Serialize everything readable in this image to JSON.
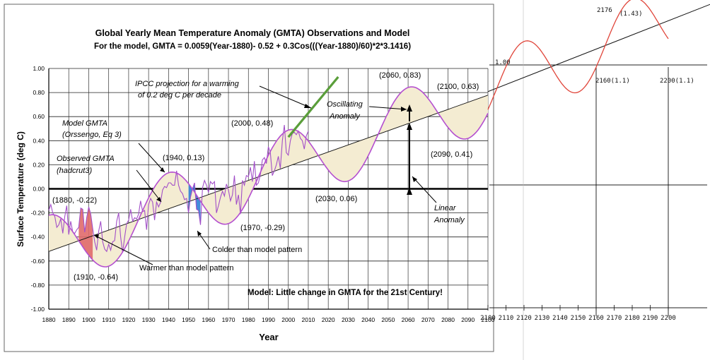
{
  "chart_data": {
    "type": "line",
    "title": "Global Yearly Mean Temperature Anomaly (GMTA) Observations and Model",
    "subtitle": "For the model, GMTA = 0.0059(Year-1880)- 0.52 + 0.3Cos(((Year-1880)/60)*2*3.1416)",
    "xlabel": "Year",
    "ylabel": "Surface Temperature (deg C)",
    "xlim": [
      1880,
      2100
    ],
    "ylim": [
      -1.0,
      1.0
    ],
    "x_ticks": [
      "1880",
      "1890",
      "1900",
      "1910",
      "1920",
      "1930",
      "1940",
      "1950",
      "1960",
      "1970",
      "1980",
      "1990",
      "2000",
      "2010",
      "2020",
      "2030",
      "2040",
      "2050",
      "2060",
      "2070",
      "2080",
      "2090",
      "2100"
    ],
    "y_ticks": [
      "1.00",
      "0.80",
      "0.60",
      "0.40",
      "0.20",
      "0.00",
      "-0.20",
      "-0.40",
      "-0.60",
      "-0.80",
      "-1.00"
    ],
    "series": [
      {
        "name": "Model GMTA (Orssengo, Eq 3)",
        "color": "#b44fd0",
        "formula": "0.0059(Year-1880)-0.52+0.3cos(2pi(Year-1880)/60)"
      },
      {
        "name": "Linear Anomaly",
        "color": "#000000",
        "formula": "0.0059(Year-1880)-0.52"
      },
      {
        "name": "Observed GMTA (hadcrut3)",
        "color": "#a24fc8",
        "x": [
          1880,
          1881,
          1882,
          1883,
          1884,
          1885,
          1886,
          1887,
          1888,
          1889,
          1890,
          1891,
          1892,
          1893,
          1894,
          1895,
          1896,
          1897,
          1898,
          1899,
          1900,
          1901,
          1902,
          1903,
          1904,
          1905,
          1906,
          1907,
          1908,
          1909,
          1910,
          1911,
          1912,
          1913,
          1914,
          1915,
          1916,
          1917,
          1918,
          1919,
          1920,
          1921,
          1922,
          1923,
          1924,
          1925,
          1926,
          1927,
          1928,
          1929,
          1930,
          1931,
          1932,
          1933,
          1934,
          1935,
          1936,
          1937,
          1938,
          1939,
          1940,
          1941,
          1942,
          1943,
          1944,
          1945,
          1946,
          1947,
          1948,
          1949,
          1950,
          1951,
          1952,
          1953,
          1954,
          1955,
          1956,
          1957,
          1958,
          1959,
          1960,
          1961,
          1962,
          1963,
          1964,
          1965,
          1966,
          1967,
          1968,
          1969,
          1970,
          1971,
          1972,
          1973,
          1974,
          1975,
          1976,
          1977,
          1978,
          1979,
          1980,
          1981,
          1982,
          1983,
          1984,
          1985,
          1986,
          1987,
          1988,
          1989,
          1990,
          1991,
          1992,
          1993,
          1994,
          1995,
          1996,
          1997,
          1998,
          1999,
          2000,
          2001,
          2002,
          2003,
          2004,
          2005,
          2006,
          2007,
          2008,
          2009,
          2010
        ],
        "values": [
          -0.18,
          -0.13,
          -0.2,
          -0.23,
          -0.32,
          -0.3,
          -0.25,
          -0.37,
          -0.23,
          -0.14,
          -0.38,
          -0.27,
          -0.36,
          -0.37,
          -0.34,
          -0.32,
          -0.16,
          -0.17,
          -0.36,
          -0.24,
          -0.15,
          -0.21,
          -0.33,
          -0.44,
          -0.51,
          -0.35,
          -0.27,
          -0.44,
          -0.5,
          -0.52,
          -0.46,
          -0.51,
          -0.44,
          -0.43,
          -0.27,
          -0.2,
          -0.4,
          -0.53,
          -0.4,
          -0.29,
          -0.26,
          -0.17,
          -0.27,
          -0.24,
          -0.25,
          -0.21,
          -0.1,
          -0.19,
          -0.18,
          -0.34,
          -0.13,
          -0.08,
          -0.11,
          -0.26,
          -0.11,
          -0.15,
          -0.11,
          -0.01,
          0.02,
          0.01,
          0.05,
          0.05,
          0.03,
          0.03,
          0.15,
          0.03,
          -0.02,
          -0.04,
          -0.09,
          -0.08,
          -0.2,
          -0.07,
          0.0,
          0.05,
          -0.17,
          -0.18,
          -0.3,
          0.01,
          0.07,
          0.03,
          -0.03,
          0.06,
          0.04,
          0.06,
          -0.2,
          -0.14,
          -0.07,
          -0.02,
          -0.06,
          0.04,
          -0.01,
          -0.1,
          -0.05,
          0.11,
          -0.13,
          -0.05,
          -0.21,
          0.07,
          0.03,
          0.11,
          0.1,
          0.18,
          0.06,
          0.23,
          0.03,
          0.05,
          0.12,
          0.24,
          0.26,
          0.21,
          0.35,
          0.3,
          0.11,
          0.15,
          0.2,
          0.27,
          0.17,
          0.4,
          0.53,
          0.3,
          0.28,
          0.4,
          0.46,
          0.47,
          0.45,
          0.48,
          0.42,
          0.4,
          0.33,
          0.44,
          0.48
        ]
      },
      {
        "name": "IPCC projection for a warming of 0.2 deg C per decade",
        "color": "#5a9e3a",
        "x": [
          2000,
          2025
        ],
        "values": [
          0.43,
          0.93
        ]
      }
    ],
    "highlights": [
      {
        "label": "Warmer than model pattern",
        "color": "#e06a6a"
      },
      {
        "label": "Colder than model pattern",
        "color": "#2f7fd6"
      }
    ],
    "annotations": [
      {
        "text": "(1880, -0.22)"
      },
      {
        "text": "(1910, -0.64)"
      },
      {
        "text": "(1940, 0.13)"
      },
      {
        "text": "(1970, -0.29)"
      },
      {
        "text": "(2000, 0.48)"
      },
      {
        "text": "(2030, 0.06)"
      },
      {
        "text": "(2060, 0.83)"
      },
      {
        "text": "(2090, 0.41)"
      },
      {
        "text": "(2100, 0.63)"
      }
    ],
    "labels": {
      "model_gmta_1": "Model GMTA",
      "model_gmta_2": "(Orssengo, Eq 3)",
      "observed_1": "Observed GMTA",
      "observed_2": "(hadcrut3)",
      "ipcc_1": "IPCC projection for a warming",
      "ipcc_2": "of 0.2 deg C per decade",
      "oscillating_1": "Oscillating",
      "oscillating_2": "Anomaly",
      "linear_1": "Linear",
      "linear_2": "Anomaly",
      "warmer": "Warmer than model pattern",
      "colder": "Colder than model pattern",
      "conclusion": "Model: Little change in GMTA for the 21st Century!"
    },
    "extension": {
      "xlim": [
        2100,
        2200
      ],
      "ylim": [
        -1.0,
        1.0
      ],
      "x_ticks": [
        "2100",
        "2110",
        "2120",
        "2130",
        "2140",
        "2150",
        "2160",
        "2170",
        "2180",
        "2190",
        "2200"
      ],
      "y_tick": "1.00",
      "color": "#e0453a",
      "peak_label_year": "2176",
      "peak_label_value": "(1.43)",
      "label_2160": "2160(1.1)",
      "label_2200": "2200(1.1)"
    }
  }
}
